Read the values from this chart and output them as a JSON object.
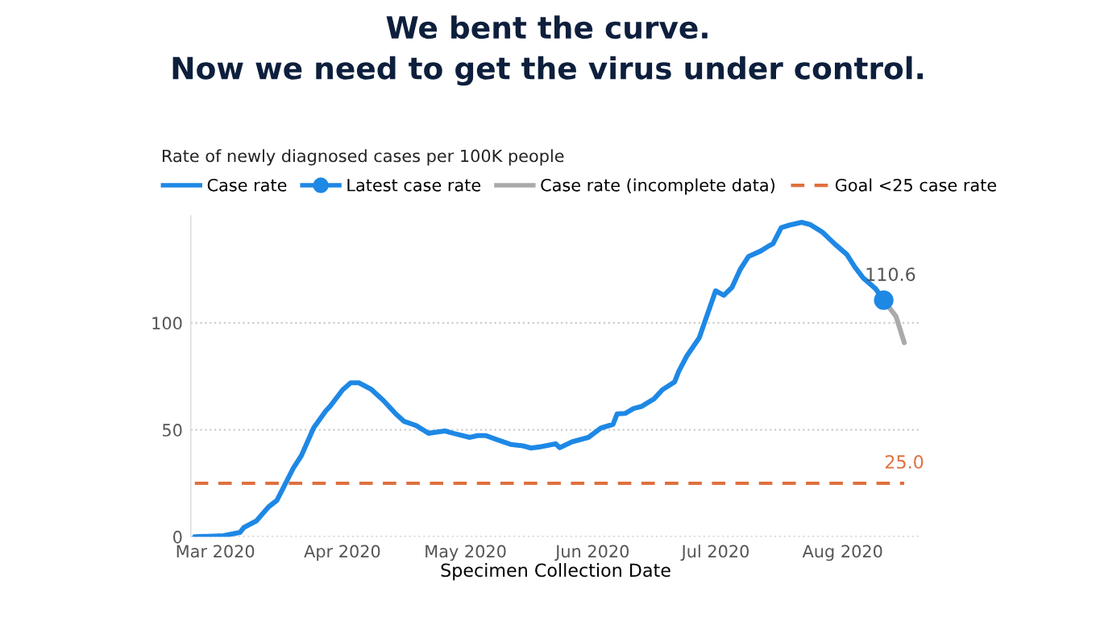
{
  "chart_data": {
    "type": "line",
    "title": "We bent the curve.\nNow we need to get the virus under control.",
    "subtitle": "Rate of newly diagnosed cases per 100K people",
    "xlabel": "Specimen Collection Date",
    "xlim": [
      "2020-02-24",
      "2020-08-20"
    ],
    "xticks": [
      {
        "value": "2020-03-01",
        "label": "Mar 2020"
      },
      {
        "value": "2020-04-01",
        "label": "Apr 2020"
      },
      {
        "value": "2020-05-01",
        "label": "May 2020"
      },
      {
        "value": "2020-06-01",
        "label": "Jun 2020"
      },
      {
        "value": "2020-07-01",
        "label": "Jul 2020"
      },
      {
        "value": "2020-08-01",
        "label": "Aug 2020"
      }
    ],
    "ylim": [
      0,
      150
    ],
    "yticks": [
      0,
      50,
      100
    ],
    "grid": "y",
    "legend": "top left",
    "line_style": "solid",
    "marker": "none",
    "series": [
      {
        "name": "Case rate",
        "color": "#1e88e5",
        "x": [
          "2020-02-25",
          "2020-03-03",
          "2020-03-07",
          "2020-03-08",
          "2020-03-11",
          "2020-03-14",
          "2020-03-16",
          "2020-03-20",
          "2020-03-22",
          "2020-03-25",
          "2020-03-28",
          "2020-03-29",
          "2020-04-01",
          "2020-04-03",
          "2020-04-05",
          "2020-04-08",
          "2020-04-11",
          "2020-04-14",
          "2020-04-16",
          "2020-04-19",
          "2020-04-22",
          "2020-04-26",
          "2020-04-28",
          "2020-05-02",
          "2020-05-04",
          "2020-05-06",
          "2020-05-09",
          "2020-05-12",
          "2020-05-15",
          "2020-05-17",
          "2020-05-19",
          "2020-05-23",
          "2020-05-24",
          "2020-05-27",
          "2020-05-31",
          "2020-06-03",
          "2020-06-06",
          "2020-06-07",
          "2020-06-09",
          "2020-06-11",
          "2020-06-13",
          "2020-06-16",
          "2020-06-18",
          "2020-06-21",
          "2020-06-22",
          "2020-06-24",
          "2020-06-27",
          "2020-06-29",
          "2020-07-01",
          "2020-07-03",
          "2020-07-05",
          "2020-07-07",
          "2020-07-09",
          "2020-07-12",
          "2020-07-14",
          "2020-07-15",
          "2020-07-17",
          "2020-07-19",
          "2020-07-22",
          "2020-07-24",
          "2020-07-27",
          "2020-07-30",
          "2020-08-02",
          "2020-08-04",
          "2020-08-06",
          "2020-08-09",
          "2020-08-11"
        ],
        "values": [
          0,
          0.5,
          2,
          4.4,
          7.4,
          14,
          17,
          32,
          38,
          51,
          59,
          61,
          68.6,
          72,
          72,
          69,
          63.7,
          57.5,
          54,
          52,
          48.4,
          49.5,
          48.4,
          46.5,
          47.3,
          47.3,
          45.2,
          43.2,
          42.5,
          41.5,
          42,
          43.5,
          41.7,
          44.4,
          46.5,
          50.8,
          52.6,
          57.5,
          57.7,
          60,
          61,
          64.5,
          68.7,
          72.4,
          77.3,
          84.6,
          93,
          104,
          115,
          112.9,
          116.6,
          125,
          131,
          133.6,
          136,
          137,
          144.5,
          145.7,
          147,
          146,
          142.5,
          137,
          132,
          126,
          121,
          116,
          110.6
        ]
      },
      {
        "name": "Latest case rate",
        "type": "scatter",
        "marker": "circle",
        "color": "#1e88e5",
        "x": [
          "2020-08-11"
        ],
        "values": [
          110.6
        ],
        "value_labels": [
          "110.6"
        ]
      },
      {
        "name": "Case rate (incomplete data)",
        "color": "#aaaaaa",
        "x": [
          "2020-08-11",
          "2020-08-14",
          "2020-08-16"
        ],
        "values": [
          110.6,
          103,
          90.8
        ]
      },
      {
        "name": "Goal <25 case rate",
        "line_style": "dashed",
        "color": "#e0703f",
        "x": [
          "2020-02-25",
          "2020-08-16"
        ],
        "values": [
          25,
          25
        ],
        "value_labels": [
          null,
          "25.0"
        ]
      }
    ]
  }
}
